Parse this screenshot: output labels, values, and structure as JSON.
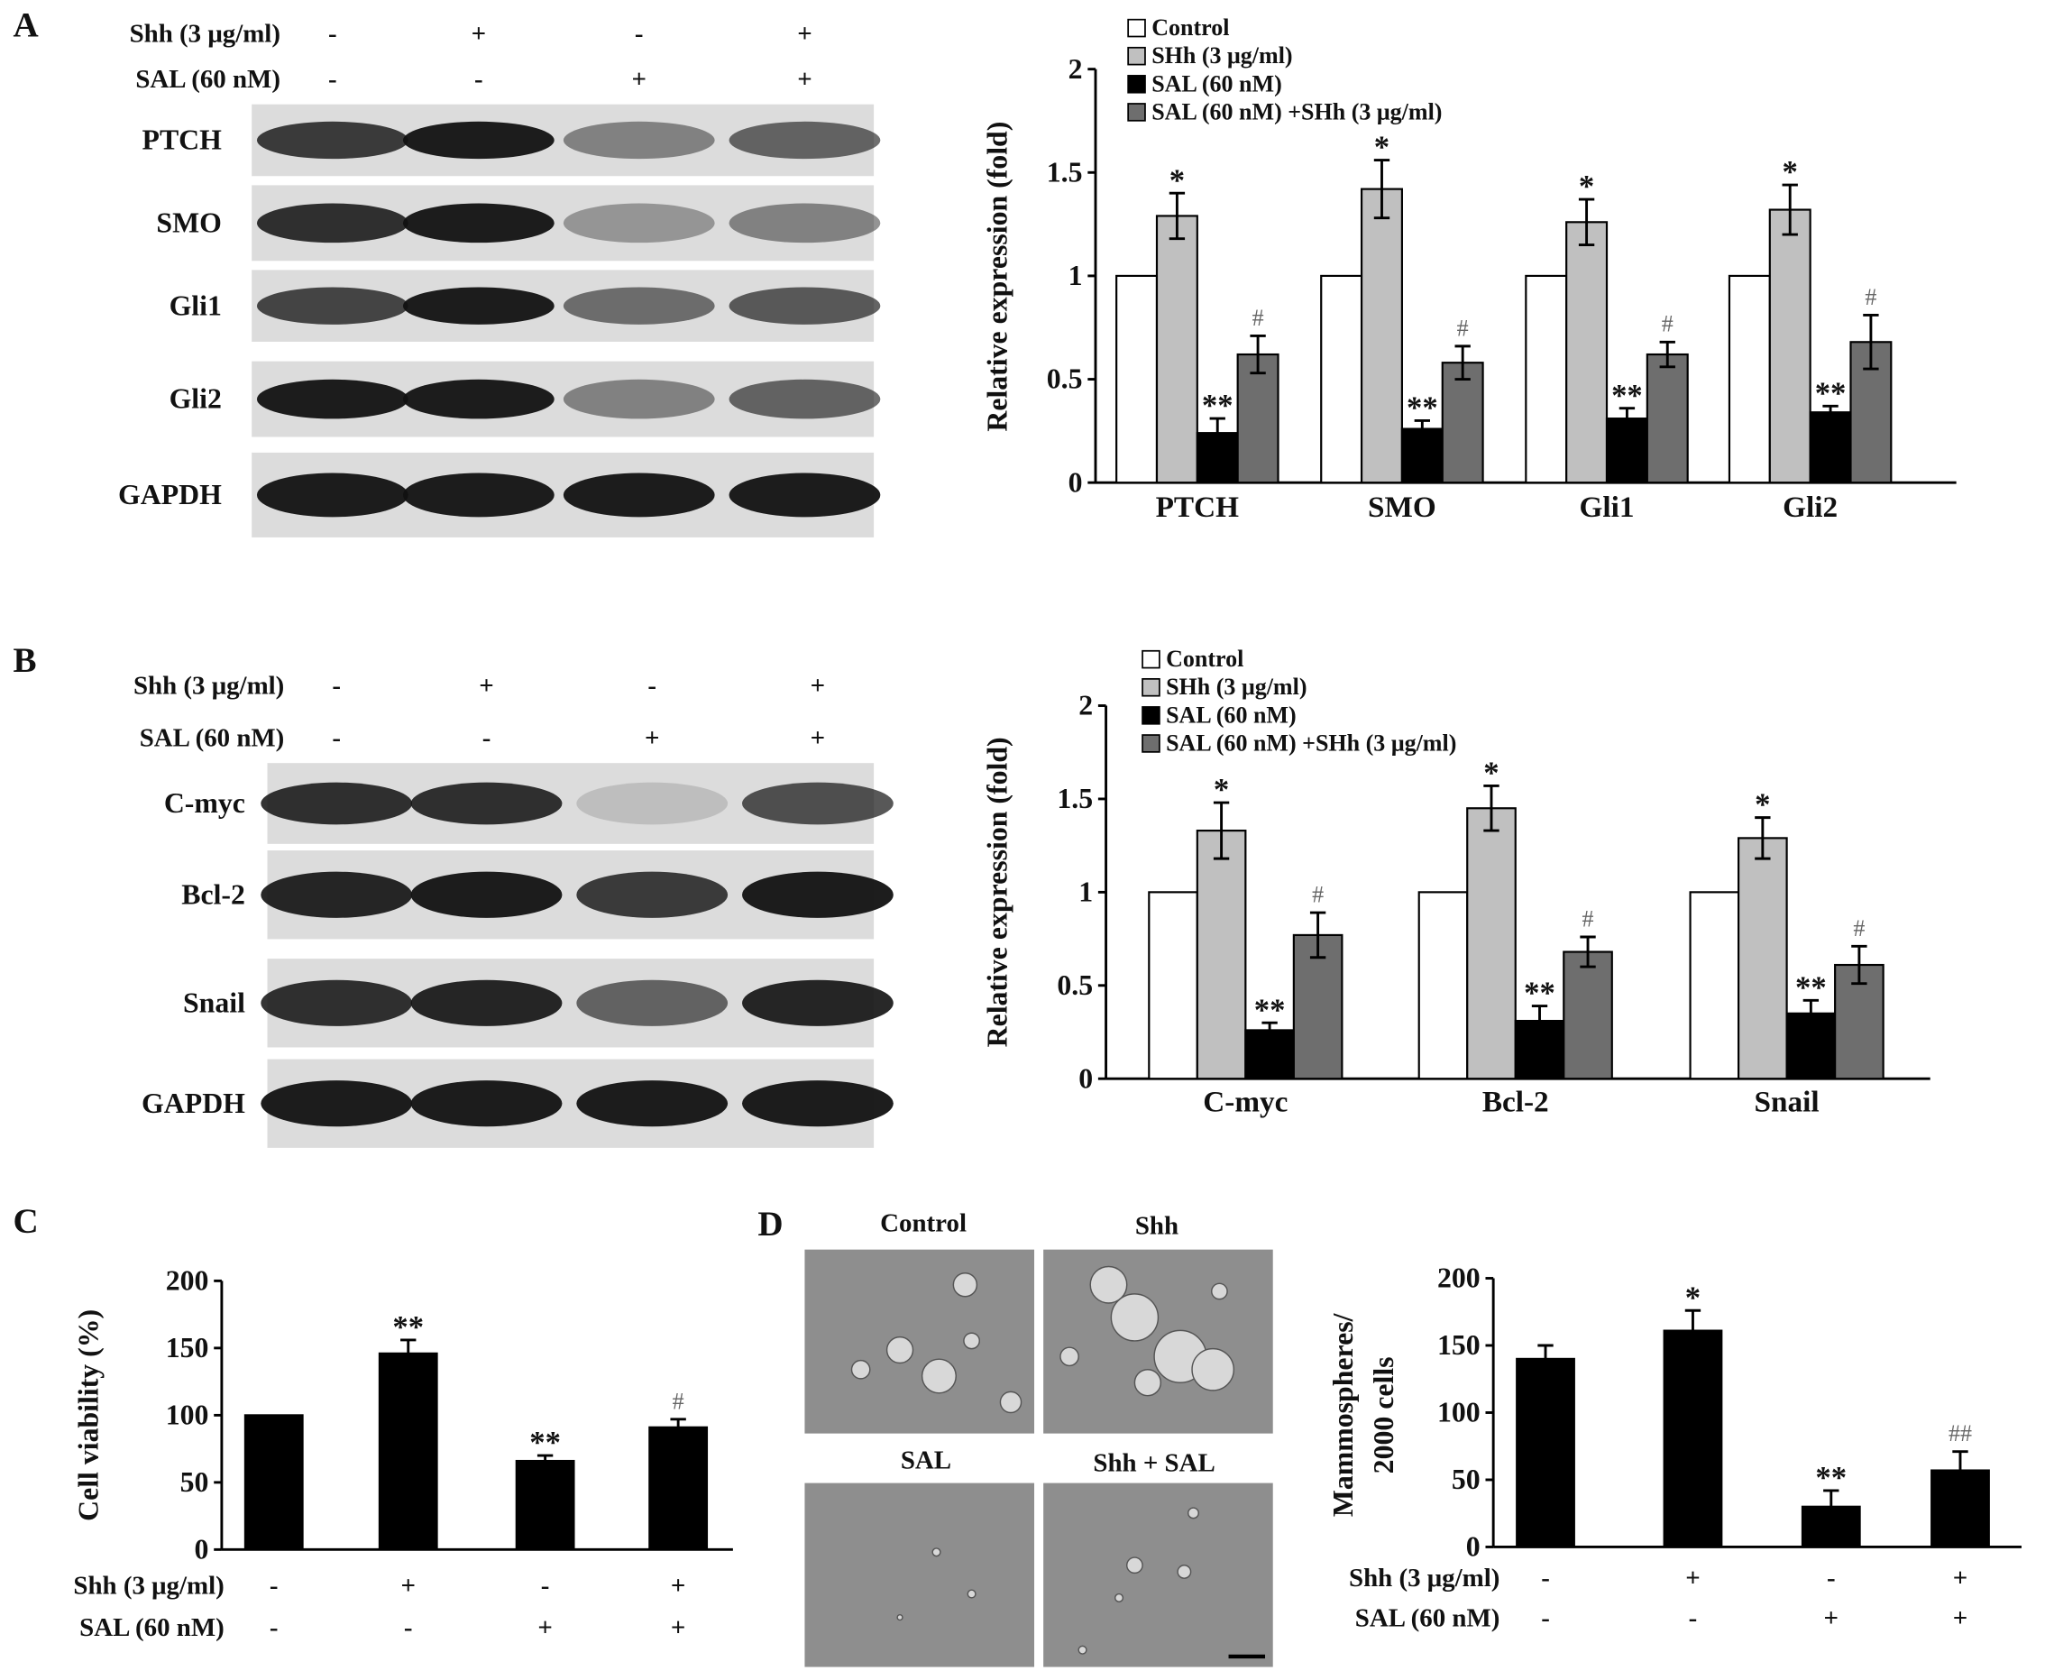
{
  "figure": {
    "panel_letters": [
      "A",
      "B",
      "C",
      "D"
    ],
    "blot_a": {
      "conditions": [
        {
          "label": "Shh (3 μg/ml)",
          "signs": [
            "-",
            "+",
            "-",
            "+"
          ]
        },
        {
          "label": "SAL (60 nM)",
          "signs": [
            "-",
            "-",
            "+",
            "+"
          ]
        }
      ],
      "rows": [
        "PTCH",
        "SMO",
        "Gli1",
        "Gli2",
        "GAPDH"
      ]
    },
    "blot_b": {
      "conditions": [
        {
          "label": "Shh (3 μg/ml)",
          "signs": [
            "-",
            "+",
            "-",
            "+"
          ]
        },
        {
          "label": "SAL (60 nM)",
          "signs": [
            "-",
            "-",
            "+",
            "+"
          ]
        }
      ],
      "rows": [
        "C-myc",
        "Bcl-2",
        "Snail",
        "GAPDH"
      ]
    },
    "micrographs": {
      "labels": [
        "Control",
        "Shh",
        "SAL",
        "Shh + SAL"
      ]
    }
  },
  "chart_data": [
    {
      "type": "bar",
      "ylabel": [
        "Relative expression (fold)"
      ],
      "categories": [
        "PTCH",
        "SMO",
        "Gli1",
        "Gli2"
      ],
      "ylim": [
        0,
        2
      ],
      "yticks": [
        0,
        0.5,
        1,
        1.5,
        2
      ],
      "series": [
        {
          "name": "Control",
          "color": "#ffffff",
          "values": [
            1,
            1,
            1,
            1
          ]
        },
        {
          "name": "SHh (3 μg/ml)",
          "color": "#c0c0c0",
          "values": [
            1.29,
            1.42,
            1.26,
            1.32
          ],
          "errors": [
            0.11,
            0.14,
            0.11,
            0.12
          ],
          "sig": [
            "*",
            "*",
            "*",
            "*"
          ]
        },
        {
          "name": "SAL (60 nM)",
          "color": "#000000",
          "values": [
            0.24,
            0.26,
            0.31,
            0.34
          ],
          "errors": [
            0.07,
            0.04,
            0.05,
            0.03
          ],
          "sig": [
            "**",
            "**",
            "**",
            "**"
          ]
        },
        {
          "name": "SAL (60 nM) +SHh (3 μg/ml)",
          "color": "#6e6e6e",
          "values": [
            0.62,
            0.58,
            0.62,
            0.68
          ],
          "errors": [
            0.09,
            0.08,
            0.06,
            0.13
          ],
          "sig": [
            "#",
            "#",
            "#",
            "#"
          ]
        }
      ]
    },
    {
      "type": "bar",
      "ylabel": [
        "Relative expression (fold)"
      ],
      "categories": [
        "C-myc",
        "Bcl-2",
        "Snail"
      ],
      "ylim": [
        0,
        2
      ],
      "yticks": [
        0,
        0.5,
        1,
        1.5,
        2
      ],
      "series": [
        {
          "name": "Control",
          "color": "#ffffff",
          "values": [
            1,
            1,
            1
          ]
        },
        {
          "name": "SHh (3 μg/ml)",
          "color": "#c0c0c0",
          "values": [
            1.33,
            1.45,
            1.29
          ],
          "errors": [
            0.15,
            0.12,
            0.11
          ],
          "sig": [
            "*",
            "*",
            "*"
          ]
        },
        {
          "name": "SAL (60 nM)",
          "color": "#000000",
          "values": [
            0.26,
            0.31,
            0.35
          ],
          "errors": [
            0.04,
            0.08,
            0.07
          ],
          "sig": [
            "**",
            "**",
            "**"
          ]
        },
        {
          "name": "SAL (60 nM) +SHh (3 μg/ml)",
          "color": "#6e6e6e",
          "values": [
            0.77,
            0.68,
            0.61
          ],
          "errors": [
            0.12,
            0.08,
            0.1
          ],
          "sig": [
            "#",
            "#",
            "#"
          ]
        }
      ]
    },
    {
      "type": "bar",
      "ylabel": [
        "Cell viability (%)"
      ],
      "color": "#000000",
      "values": [
        100,
        146,
        66,
        91
      ],
      "errors": [
        null,
        10,
        4,
        6
      ],
      "sig": [
        null,
        "**",
        "**",
        "#"
      ],
      "ylim": [
        0,
        200
      ],
      "yticks": [
        0,
        50,
        100,
        150,
        200
      ],
      "conditions": [
        {
          "label": "Shh (3 μg/ml)",
          "signs": [
            "-",
            "+",
            "-",
            "+"
          ]
        },
        {
          "label": "SAL (60 nM)",
          "signs": [
            "-",
            "-",
            "+",
            "+"
          ]
        }
      ]
    },
    {
      "type": "bar",
      "ylabel": [
        "Mammospheres/",
        "2000 cells"
      ],
      "color": "#000000",
      "values": [
        140,
        161,
        30,
        57
      ],
      "errors": [
        10,
        15,
        12,
        14
      ],
      "sig": [
        null,
        "*",
        "**",
        "##"
      ],
      "ylim": [
        0,
        200
      ],
      "yticks": [
        0,
        50,
        100,
        150,
        200
      ],
      "conditions": [
        {
          "label": "Shh (3 μg/ml)",
          "signs": [
            "-",
            "+",
            "-",
            "+"
          ]
        },
        {
          "label": "SAL (60 nM)",
          "signs": [
            "-",
            "-",
            "+",
            "+"
          ]
        }
      ]
    }
  ]
}
